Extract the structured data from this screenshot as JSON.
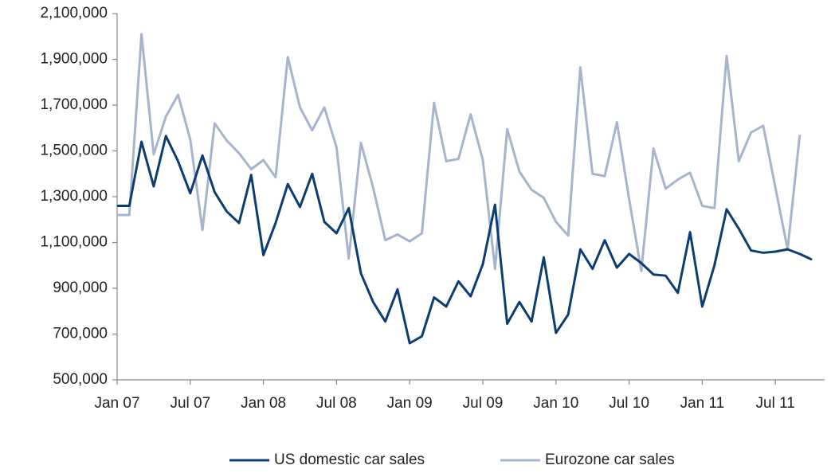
{
  "chart_data": {
    "type": "line",
    "categories": [
      "Jan 07",
      null,
      null,
      null,
      null,
      null,
      "Jul 07",
      null,
      null,
      null,
      null,
      null,
      "Jan 08",
      null,
      null,
      null,
      null,
      null,
      "Jul 08",
      null,
      null,
      null,
      null,
      null,
      "Jan 09",
      null,
      null,
      null,
      null,
      null,
      "Jul 09",
      null,
      null,
      null,
      null,
      null,
      "Jan 10",
      null,
      null,
      null,
      null,
      null,
      "Jul 10",
      null,
      null,
      null,
      null,
      null,
      "Jan 11",
      null,
      null,
      null,
      null,
      null,
      "Jul 11",
      null,
      null,
      null
    ],
    "series": [
      {
        "name": "US domestic car sales",
        "color": "#0b3d73",
        "values": [
          1260000,
          1260000,
          1540000,
          1345000,
          1565000,
          1455000,
          1315000,
          1480000,
          1320000,
          1235000,
          1185000,
          1395000,
          1045000,
          1185000,
          1355000,
          1255000,
          1400000,
          1190000,
          1140000,
          1250000,
          965000,
          840000,
          755000,
          895000,
          660000,
          690000,
          860000,
          820000,
          930000,
          865000,
          1005000,
          1265000,
          745000,
          840000,
          755000,
          1035000,
          705000,
          785000,
          1070000,
          985000,
          1110000,
          990000,
          1050000,
          1010000,
          960000,
          955000,
          880000,
          1145000,
          820000,
          1000000,
          1245000,
          1160000,
          1065000,
          1055000,
          1060000,
          1070000,
          1050000,
          1025000
        ]
      },
      {
        "name": "Eurozone car sales",
        "color": "#a6b4cc",
        "values": [
          1220000,
          1220000,
          2010000,
          1485000,
          1650000,
          1745000,
          1550000,
          1155000,
          1620000,
          1545000,
          1490000,
          1420000,
          1460000,
          1385000,
          1910000,
          1690000,
          1590000,
          1690000,
          1515000,
          1030000,
          1535000,
          1340000,
          1110000,
          1135000,
          1105000,
          1140000,
          1710000,
          1455000,
          1465000,
          1660000,
          1460000,
          985000,
          1595000,
          1410000,
          1330000,
          1295000,
          1190000,
          1130000,
          1865000,
          1400000,
          1390000,
          1625000,
          1290000,
          975000,
          1510000,
          1335000,
          1375000,
          1405000,
          1260000,
          1250000,
          1915000,
          1455000,
          1580000,
          1610000,
          1340000,
          1070000,
          1570000,
          null
        ]
      }
    ],
    "ylim": [
      500000,
      2100000
    ],
    "yticks": [
      {
        "value": 500000,
        "label": "500,000"
      },
      {
        "value": 700000,
        "label": "700,000"
      },
      {
        "value": 900000,
        "label": "900,000"
      },
      {
        "value": 1100000,
        "label": "1,100,000"
      },
      {
        "value": 1300000,
        "label": "1,300,000"
      },
      {
        "value": 1500000,
        "label": "1,500,000"
      },
      {
        "value": 1700000,
        "label": "1,700,000"
      },
      {
        "value": 1900000,
        "label": "1,900,000"
      },
      {
        "value": 2100000,
        "label": "2,100,000"
      }
    ],
    "legend": "bottom"
  }
}
